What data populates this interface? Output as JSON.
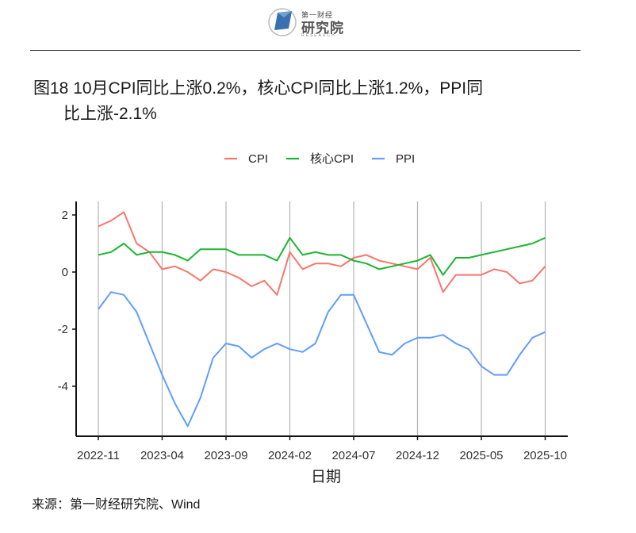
{
  "header": {
    "logo_top": "第一财经",
    "logo_main": "研究院",
    "logo_sub": "RESEARCH"
  },
  "title": {
    "line1": "图18 10月CPI同比上涨0.2%，核心CPI同比上涨1.2%，PPI同",
    "line2": "比上涨-2.1%"
  },
  "source": "来源：第一财经研究院、Wind",
  "colors": {
    "cpi": "#F8766D",
    "core": "#1DB52F",
    "ppi": "#619CFF"
  },
  "chart_data": {
    "type": "line",
    "xlabel": "日期",
    "ylabel": "",
    "ylim": [
      -5.8,
      2.45
    ],
    "y_ticks": [
      2,
      0,
      -2,
      -4
    ],
    "x_ticks": [
      "2022-11",
      "2023-04",
      "2023-09",
      "2024-02",
      "2024-07",
      "2024-12",
      "2025-05",
      "2025-10"
    ],
    "x_start": "2022-11",
    "legend_position": "top",
    "grid": "vertical-major",
    "series": [
      {
        "name": "CPI",
        "color_key": "cpi",
        "values": [
          1.6,
          1.8,
          2.1,
          1.0,
          0.7,
          0.1,
          0.2,
          0.0,
          -0.3,
          0.1,
          0.0,
          -0.2,
          -0.5,
          -0.3,
          -0.8,
          0.7,
          0.1,
          0.3,
          0.3,
          0.2,
          0.5,
          0.6,
          0.4,
          0.3,
          0.2,
          0.1,
          0.5,
          -0.7,
          -0.1,
          -0.1,
          -0.1,
          0.1,
          0.0,
          -0.4,
          -0.3,
          0.2
        ]
      },
      {
        "name": "核心CPI",
        "color_key": "core",
        "values": [
          0.6,
          0.7,
          1.0,
          0.6,
          0.7,
          0.7,
          0.6,
          0.4,
          0.8,
          0.8,
          0.8,
          0.6,
          0.6,
          0.6,
          0.4,
          1.2,
          0.6,
          0.7,
          0.6,
          0.6,
          0.4,
          0.3,
          0.1,
          0.2,
          0.3,
          0.4,
          0.6,
          -0.1,
          0.5,
          0.5,
          0.6,
          0.7,
          0.8,
          0.9,
          1.0,
          1.2
        ]
      },
      {
        "name": "PPI",
        "color_key": "ppi",
        "values": [
          -1.3,
          -0.7,
          -0.8,
          -1.4,
          -2.5,
          -3.6,
          -4.6,
          -5.4,
          -4.4,
          -3.0,
          -2.5,
          -2.6,
          -3.0,
          -2.7,
          -2.5,
          -2.7,
          -2.8,
          -2.5,
          -1.4,
          -0.8,
          -0.8,
          -1.8,
          -2.8,
          -2.9,
          -2.5,
          -2.3,
          -2.3,
          -2.2,
          -2.5,
          -2.7,
          -3.3,
          -3.6,
          -3.6,
          -2.9,
          -2.3,
          -2.1
        ]
      }
    ]
  }
}
